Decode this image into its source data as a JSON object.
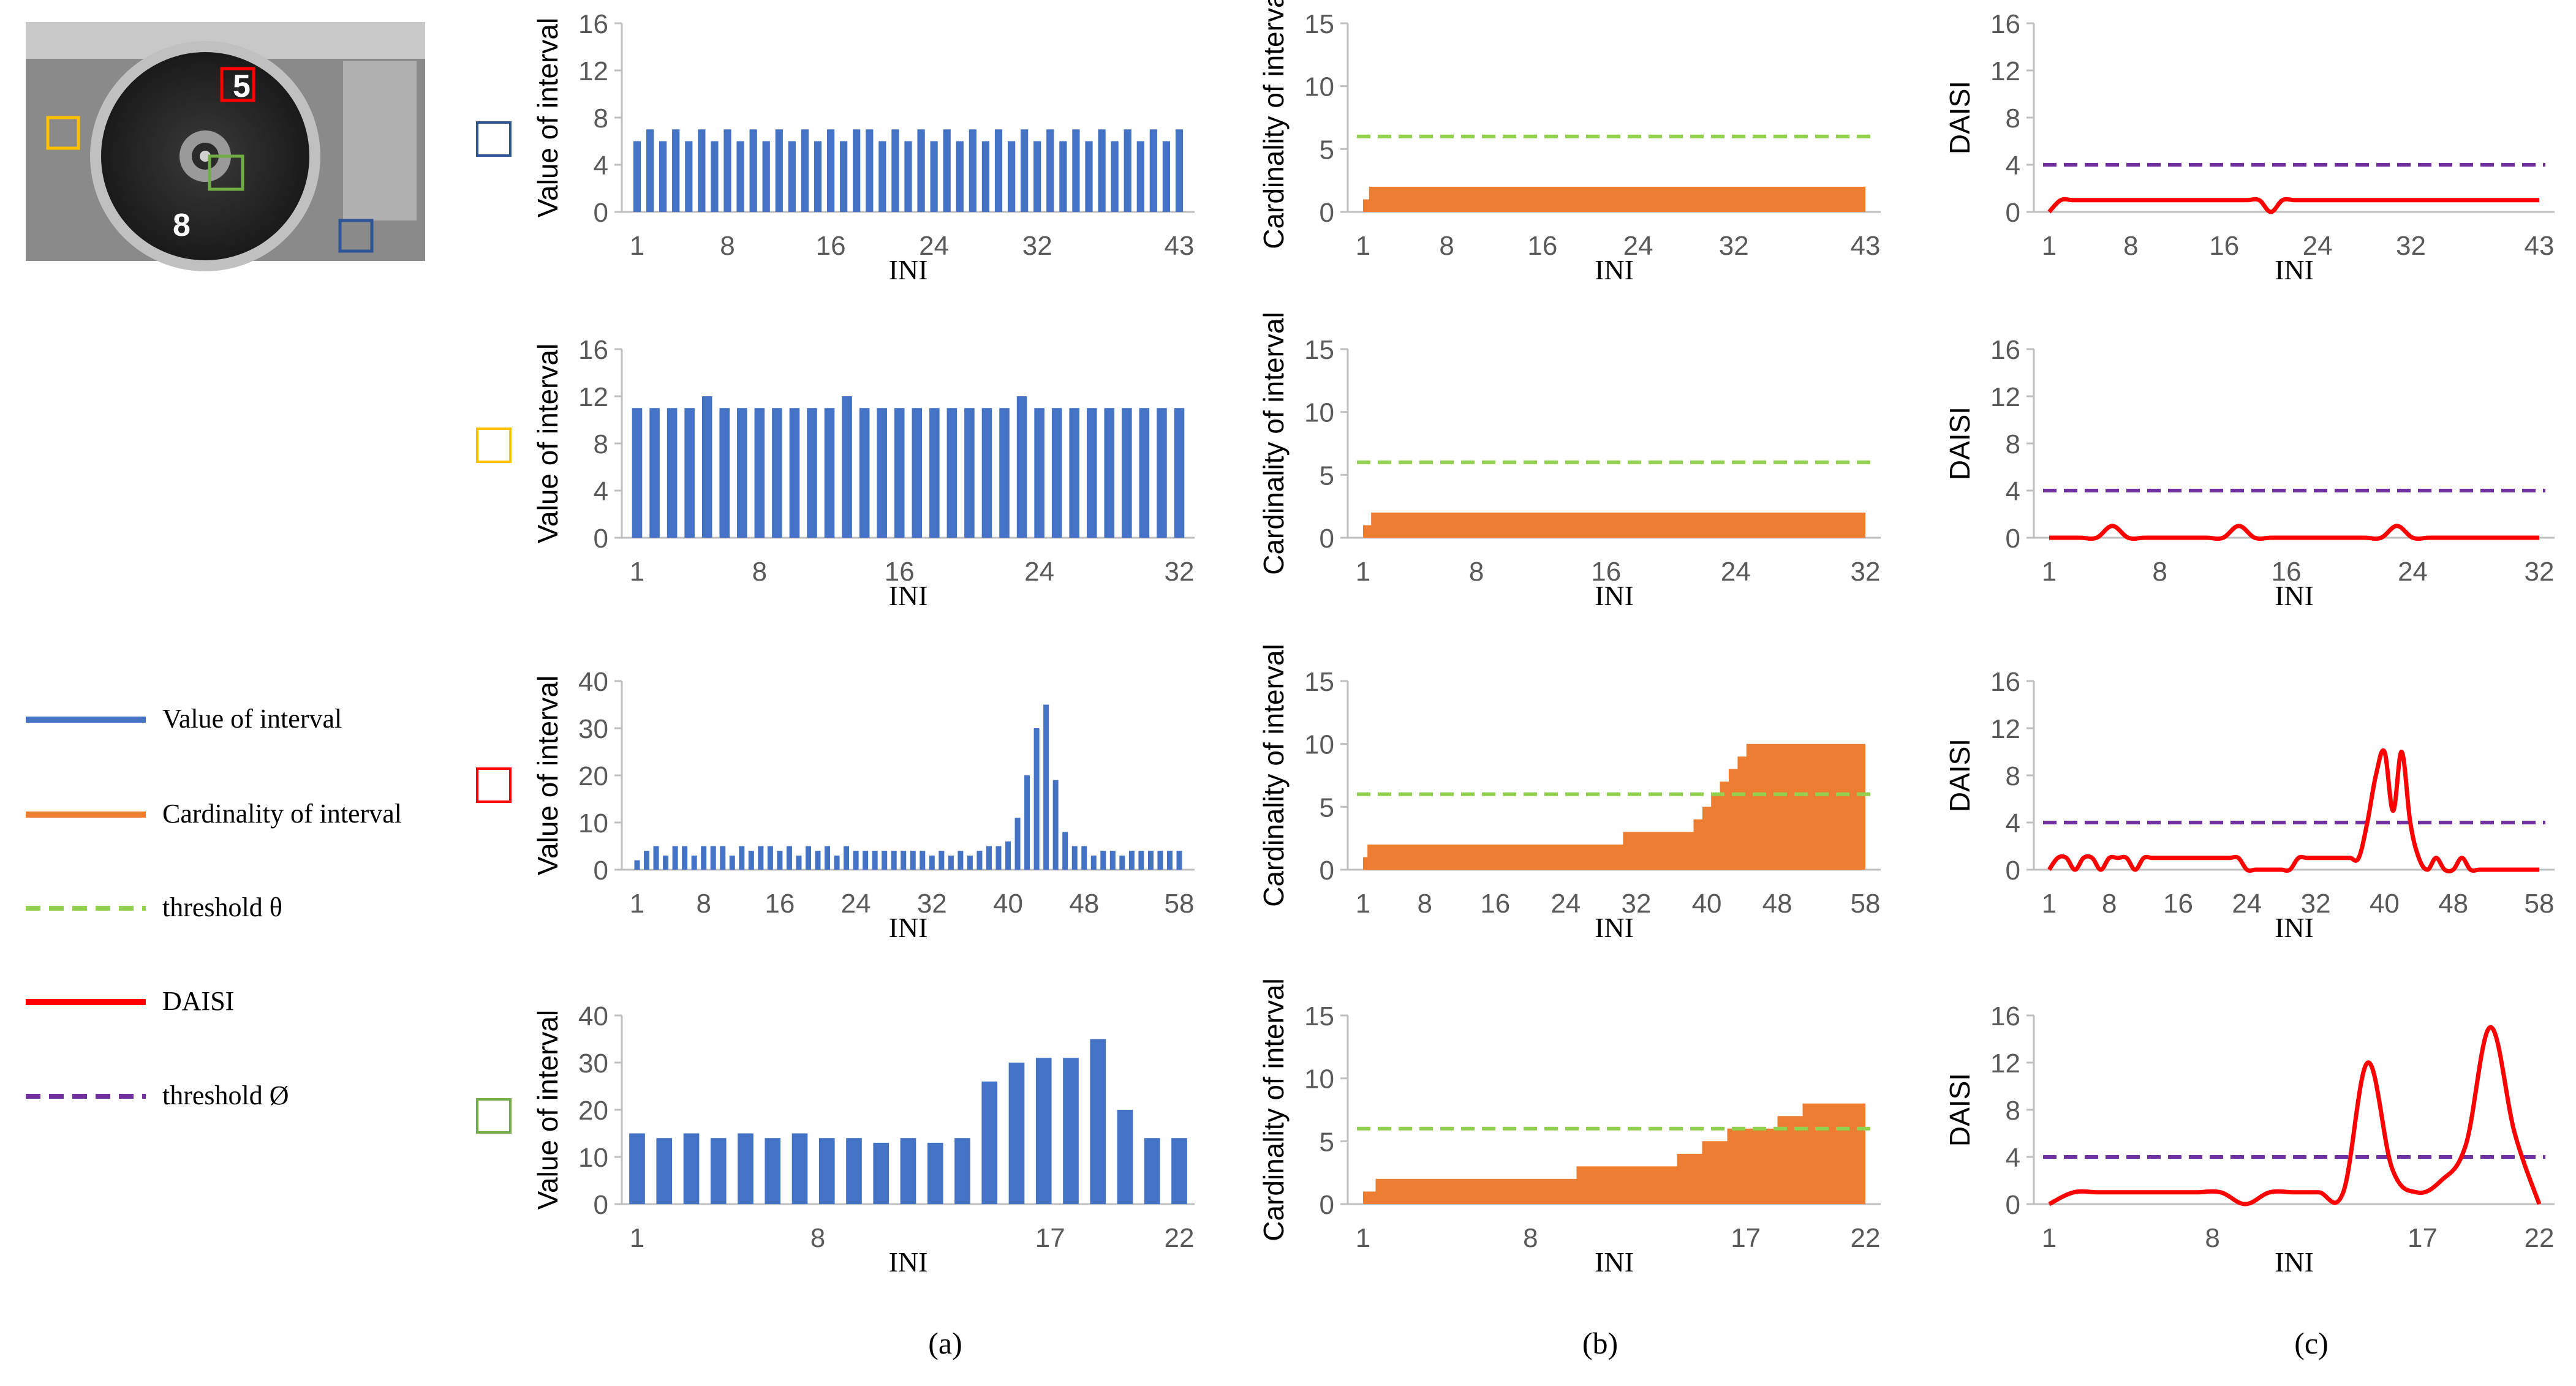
{
  "colors": {
    "value_bar": "#4472C4",
    "cardinality": "#ED7D31",
    "threshold_theta": "#92D050",
    "daisi": "#FF0000",
    "threshold_phi": "#7030A0",
    "axis": "#BFBFBF",
    "tick_text": "#595959",
    "frame_blue": "#2F5597",
    "frame_yellow": "#FFC000",
    "frame_red": "#FF0000",
    "frame_green": "#70AD47"
  },
  "legend": [
    {
      "label": "Value of interval",
      "color": "#4472C4",
      "dash": false
    },
    {
      "label": "Cardinality  of interval",
      "color": "#ED7D31",
      "dash": false
    },
    {
      "label": "threshold θ",
      "color": "#92D050",
      "dash": true
    },
    {
      "label": "DAISI",
      "color": "#FF0000",
      "dash": false
    },
    {
      "label": "threshold Ø",
      "color": "#7030A0",
      "dash": true
    }
  ],
  "photo": {
    "digit_top": "5",
    "digit_bottom": "8"
  },
  "column_labels": [
    "(a)",
    "(b)",
    "(c)"
  ],
  "row_markers": [
    "blue",
    "yellow",
    "red",
    "green"
  ],
  "chart_data": [
    {
      "type": "bar",
      "row": 0,
      "col": 0,
      "title": "",
      "xlabel": "INI",
      "ylabel": "Value of interval",
      "x_range": [
        1,
        43
      ],
      "xticks": [
        1,
        8,
        16,
        24,
        32,
        43
      ],
      "ylim": [
        0,
        16
      ],
      "yticks": [
        0,
        4,
        8,
        12,
        16
      ],
      "values": [
        6,
        7,
        6,
        7,
        6,
        7,
        6,
        7,
        6,
        7,
        6,
        7,
        6,
        7,
        6,
        7,
        6,
        7,
        7,
        6,
        7,
        6,
        7,
        6,
        7,
        6,
        7,
        6,
        7,
        6,
        7,
        6,
        7,
        6,
        7,
        6,
        7,
        6,
        7,
        6,
        7,
        6,
        7
      ]
    },
    {
      "type": "area",
      "row": 0,
      "col": 1,
      "xlabel": "INI",
      "ylabel": "Cardinality of interval",
      "x_range": [
        1,
        43
      ],
      "xticks": [
        1,
        8,
        16,
        24,
        32,
        43
      ],
      "ylim": [
        0,
        15
      ],
      "yticks": [
        0,
        5,
        10,
        15
      ],
      "threshold": 6,
      "values": [
        1,
        2,
        2,
        2,
        2,
        2,
        2,
        2,
        2,
        2,
        2,
        2,
        2,
        2,
        2,
        2,
        2,
        2,
        2,
        2,
        2,
        2,
        2,
        2,
        2,
        2,
        2,
        2,
        2,
        2,
        2,
        2,
        2,
        2,
        2,
        2,
        2,
        2,
        2,
        2,
        2,
        2,
        2
      ]
    },
    {
      "type": "line",
      "row": 0,
      "col": 2,
      "xlabel": "INI",
      "ylabel": "DAISI",
      "x_range": [
        1,
        43
      ],
      "xticks": [
        1,
        8,
        16,
        24,
        32,
        43
      ],
      "ylim": [
        0,
        16
      ],
      "yticks": [
        0,
        4,
        8,
        12,
        16
      ],
      "threshold": 4,
      "values": [
        0,
        1,
        1,
        1,
        1,
        1,
        1,
        1,
        1,
        1,
        1,
        1,
        1,
        1,
        1,
        1,
        1,
        1,
        1,
        0,
        1,
        1,
        1,
        1,
        1,
        1,
        1,
        1,
        1,
        1,
        1,
        1,
        1,
        1,
        1,
        1,
        1,
        1,
        1,
        1,
        1,
        1,
        1
      ]
    },
    {
      "type": "bar",
      "row": 1,
      "col": 0,
      "xlabel": "INI",
      "ylabel": "Value of interval",
      "x_range": [
        1,
        32
      ],
      "xticks": [
        1,
        8,
        16,
        24,
        32
      ],
      "ylim": [
        0,
        16
      ],
      "yticks": [
        0,
        4,
        8,
        12,
        16
      ],
      "values": [
        11,
        11,
        11,
        11,
        12,
        11,
        11,
        11,
        11,
        11,
        11,
        11,
        12,
        11,
        11,
        11,
        11,
        11,
        11,
        11,
        11,
        11,
        12,
        11,
        11,
        11,
        11,
        11,
        11,
        11,
        11,
        11
      ]
    },
    {
      "type": "area",
      "row": 1,
      "col": 1,
      "xlabel": "INI",
      "ylabel": "Cardinality of interval",
      "x_range": [
        1,
        32
      ],
      "xticks": [
        1,
        8,
        16,
        24,
        32
      ],
      "ylim": [
        0,
        15
      ],
      "yticks": [
        0,
        5,
        10,
        15
      ],
      "threshold": 6,
      "values": [
        1,
        2,
        2,
        2,
        2,
        2,
        2,
        2,
        2,
        2,
        2,
        2,
        2,
        2,
        2,
        2,
        2,
        2,
        2,
        2,
        2,
        2,
        2,
        2,
        2,
        2,
        2,
        2,
        2,
        2,
        2,
        2
      ]
    },
    {
      "type": "line",
      "row": 1,
      "col": 2,
      "xlabel": "INI",
      "ylabel": "DAISI",
      "x_range": [
        1,
        32
      ],
      "xticks": [
        1,
        8,
        16,
        24,
        32
      ],
      "ylim": [
        0,
        16
      ],
      "yticks": [
        0,
        4,
        8,
        12,
        16
      ],
      "threshold": 4,
      "values": [
        0,
        0,
        0,
        0,
        1,
        0,
        0,
        0,
        0,
        0,
        0,
        0,
        1,
        0,
        0,
        0,
        0,
        0,
        0,
        0,
        0,
        0,
        1,
        0,
        0,
        0,
        0,
        0,
        0,
        0,
        0,
        0
      ]
    },
    {
      "type": "bar",
      "row": 2,
      "col": 0,
      "xlabel": "INI",
      "ylabel": "Value of interval",
      "x_range": [
        1,
        58
      ],
      "xticks": [
        1,
        8,
        16,
        24,
        32,
        40,
        48,
        58
      ],
      "ylim": [
        0,
        40
      ],
      "yticks": [
        0,
        10,
        20,
        30,
        40
      ],
      "values": [
        2,
        4,
        5,
        3,
        5,
        5,
        3,
        5,
        5,
        5,
        3,
        5,
        4,
        5,
        5,
        4,
        5,
        3,
        5,
        4,
        5,
        3,
        5,
        4,
        4,
        4,
        4,
        4,
        4,
        4,
        4,
        3,
        4,
        3,
        4,
        3,
        4,
        5,
        5,
        6,
        11,
        20,
        30,
        35,
        19,
        8,
        5,
        5,
        3,
        4,
        4,
        3,
        4,
        4,
        4,
        4,
        4,
        4
      ]
    },
    {
      "type": "area",
      "row": 2,
      "col": 1,
      "xlabel": "INI",
      "ylabel": "Cardinality of interval",
      "x_range": [
        1,
        58
      ],
      "xticks": [
        1,
        8,
        16,
        24,
        32,
        40,
        48,
        58
      ],
      "ylim": [
        0,
        15
      ],
      "yticks": [
        0,
        5,
        10,
        15
      ],
      "threshold": 6,
      "values": [
        1,
        2,
        2,
        2,
        2,
        2,
        2,
        2,
        2,
        2,
        2,
        2,
        2,
        2,
        2,
        2,
        2,
        2,
        2,
        2,
        2,
        2,
        2,
        2,
        2,
        2,
        2,
        2,
        2,
        2,
        3,
        3,
        3,
        3,
        3,
        3,
        3,
        3,
        4,
        5,
        6,
        7,
        8,
        9,
        10,
        10,
        10,
        10,
        10,
        10,
        10,
        10,
        10,
        10,
        10,
        10,
        10,
        10
      ]
    },
    {
      "type": "line",
      "row": 2,
      "col": 2,
      "xlabel": "INI",
      "ylabel": "DAISI",
      "x_range": [
        1,
        58
      ],
      "xticks": [
        1,
        8,
        16,
        24,
        32,
        40,
        48,
        58
      ],
      "ylim": [
        0,
        16
      ],
      "yticks": [
        0,
        4,
        8,
        12,
        16
      ],
      "threshold": 4,
      "values": [
        0,
        1,
        1,
        0,
        1,
        1,
        0,
        1,
        1,
        1,
        0,
        1,
        1,
        1,
        1,
        1,
        1,
        1,
        1,
        1,
        1,
        1,
        1,
        0,
        0,
        0,
        0,
        0,
        0,
        1,
        1,
        1,
        1,
        1,
        1,
        1,
        1,
        4,
        8,
        10,
        5,
        10,
        4,
        1,
        0,
        1,
        0,
        0,
        1,
        0,
        0,
        0,
        0,
        0,
        0,
        0,
        0,
        0
      ]
    },
    {
      "type": "bar",
      "row": 3,
      "col": 0,
      "xlabel": "INI",
      "ylabel": "Value of interval",
      "x_range": [
        1,
        22
      ],
      "xticks": [
        1,
        8,
        17,
        22
      ],
      "ylim": [
        0,
        40
      ],
      "yticks": [
        0,
        10,
        20,
        30,
        40
      ],
      "values": [
        15,
        14,
        15,
        14,
        15,
        14,
        15,
        14,
        14,
        13,
        14,
        13,
        14,
        26,
        30,
        31,
        31,
        35,
        20,
        14,
        14
      ]
    },
    {
      "type": "area",
      "row": 3,
      "col": 1,
      "xlabel": "INI",
      "ylabel": "Cardinality of interval",
      "x_range": [
        1,
        22
      ],
      "xticks": [
        1,
        8,
        17,
        22
      ],
      "ylim": [
        0,
        15
      ],
      "yticks": [
        0,
        5,
        10,
        15
      ],
      "threshold": 6,
      "values": [
        1,
        2,
        2,
        2,
        2,
        2,
        2,
        2,
        2,
        3,
        3,
        3,
        3,
        4,
        5,
        6,
        6,
        7,
        8,
        8,
        8
      ]
    },
    {
      "type": "line",
      "row": 3,
      "col": 2,
      "xlabel": "INI",
      "ylabel": "DAISI",
      "x_range": [
        1,
        22
      ],
      "xticks": [
        1,
        8,
        17,
        22
      ],
      "ylim": [
        0,
        16
      ],
      "yticks": [
        0,
        4,
        8,
        12,
        16
      ],
      "threshold": 4,
      "values": [
        0,
        1,
        1,
        1,
        1,
        1,
        1,
        1,
        0,
        1,
        1,
        1,
        1,
        12,
        3,
        1,
        2,
        5,
        15,
        6,
        0
      ]
    }
  ]
}
